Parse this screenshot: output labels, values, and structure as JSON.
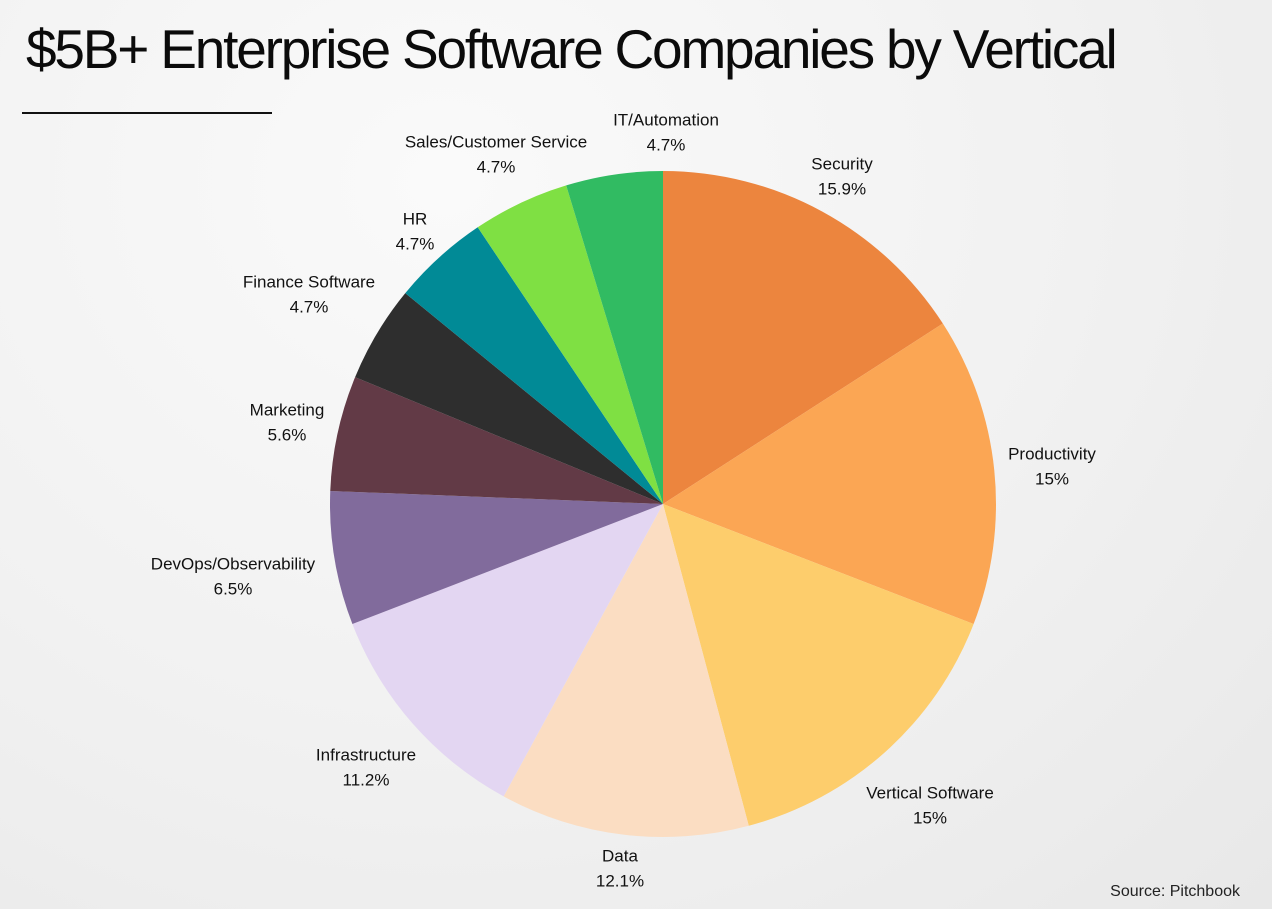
{
  "header": {
    "title": "$5B+ Enterprise Software Companies by Vertical"
  },
  "footer": {
    "source": "Source: Pitchbook"
  },
  "chart_data": {
    "type": "pie",
    "start_angle": "12 o'clock",
    "direction": "clockwise",
    "slices": [
      {
        "label": "Security",
        "value": 15.9,
        "display": "15.9%",
        "color": "#EC853E"
      },
      {
        "label": "Productivity",
        "value": 15.0,
        "display": "15%",
        "color": "#FBA654"
      },
      {
        "label": "Vertical Software",
        "value": 15.0,
        "display": "15%",
        "color": "#FDCD6C"
      },
      {
        "label": "Data",
        "value": 12.1,
        "display": "12.1%",
        "color": "#FBDDC2"
      },
      {
        "label": "Infrastructure",
        "value": 11.2,
        "display": "11.2%",
        "color": "#E3D6F2"
      },
      {
        "label": "DevOps/Observability",
        "value": 6.5,
        "display": "6.5%",
        "color": "#816B9C"
      },
      {
        "label": "Marketing",
        "value": 5.6,
        "display": "5.6%",
        "color": "#623A46"
      },
      {
        "label": "Finance Software",
        "value": 4.7,
        "display": "4.7%",
        "color": "#2E2E2E"
      },
      {
        "label": "HR",
        "value": 4.7,
        "display": "4.7%",
        "color": "#018A96"
      },
      {
        "label": "Sales/Customer Service",
        "value": 4.7,
        "display": "4.7%",
        "color": "#7FE043"
      },
      {
        "label": "IT/Automation",
        "value": 4.7,
        "display": "4.7%",
        "color": "#31BB62"
      }
    ]
  }
}
